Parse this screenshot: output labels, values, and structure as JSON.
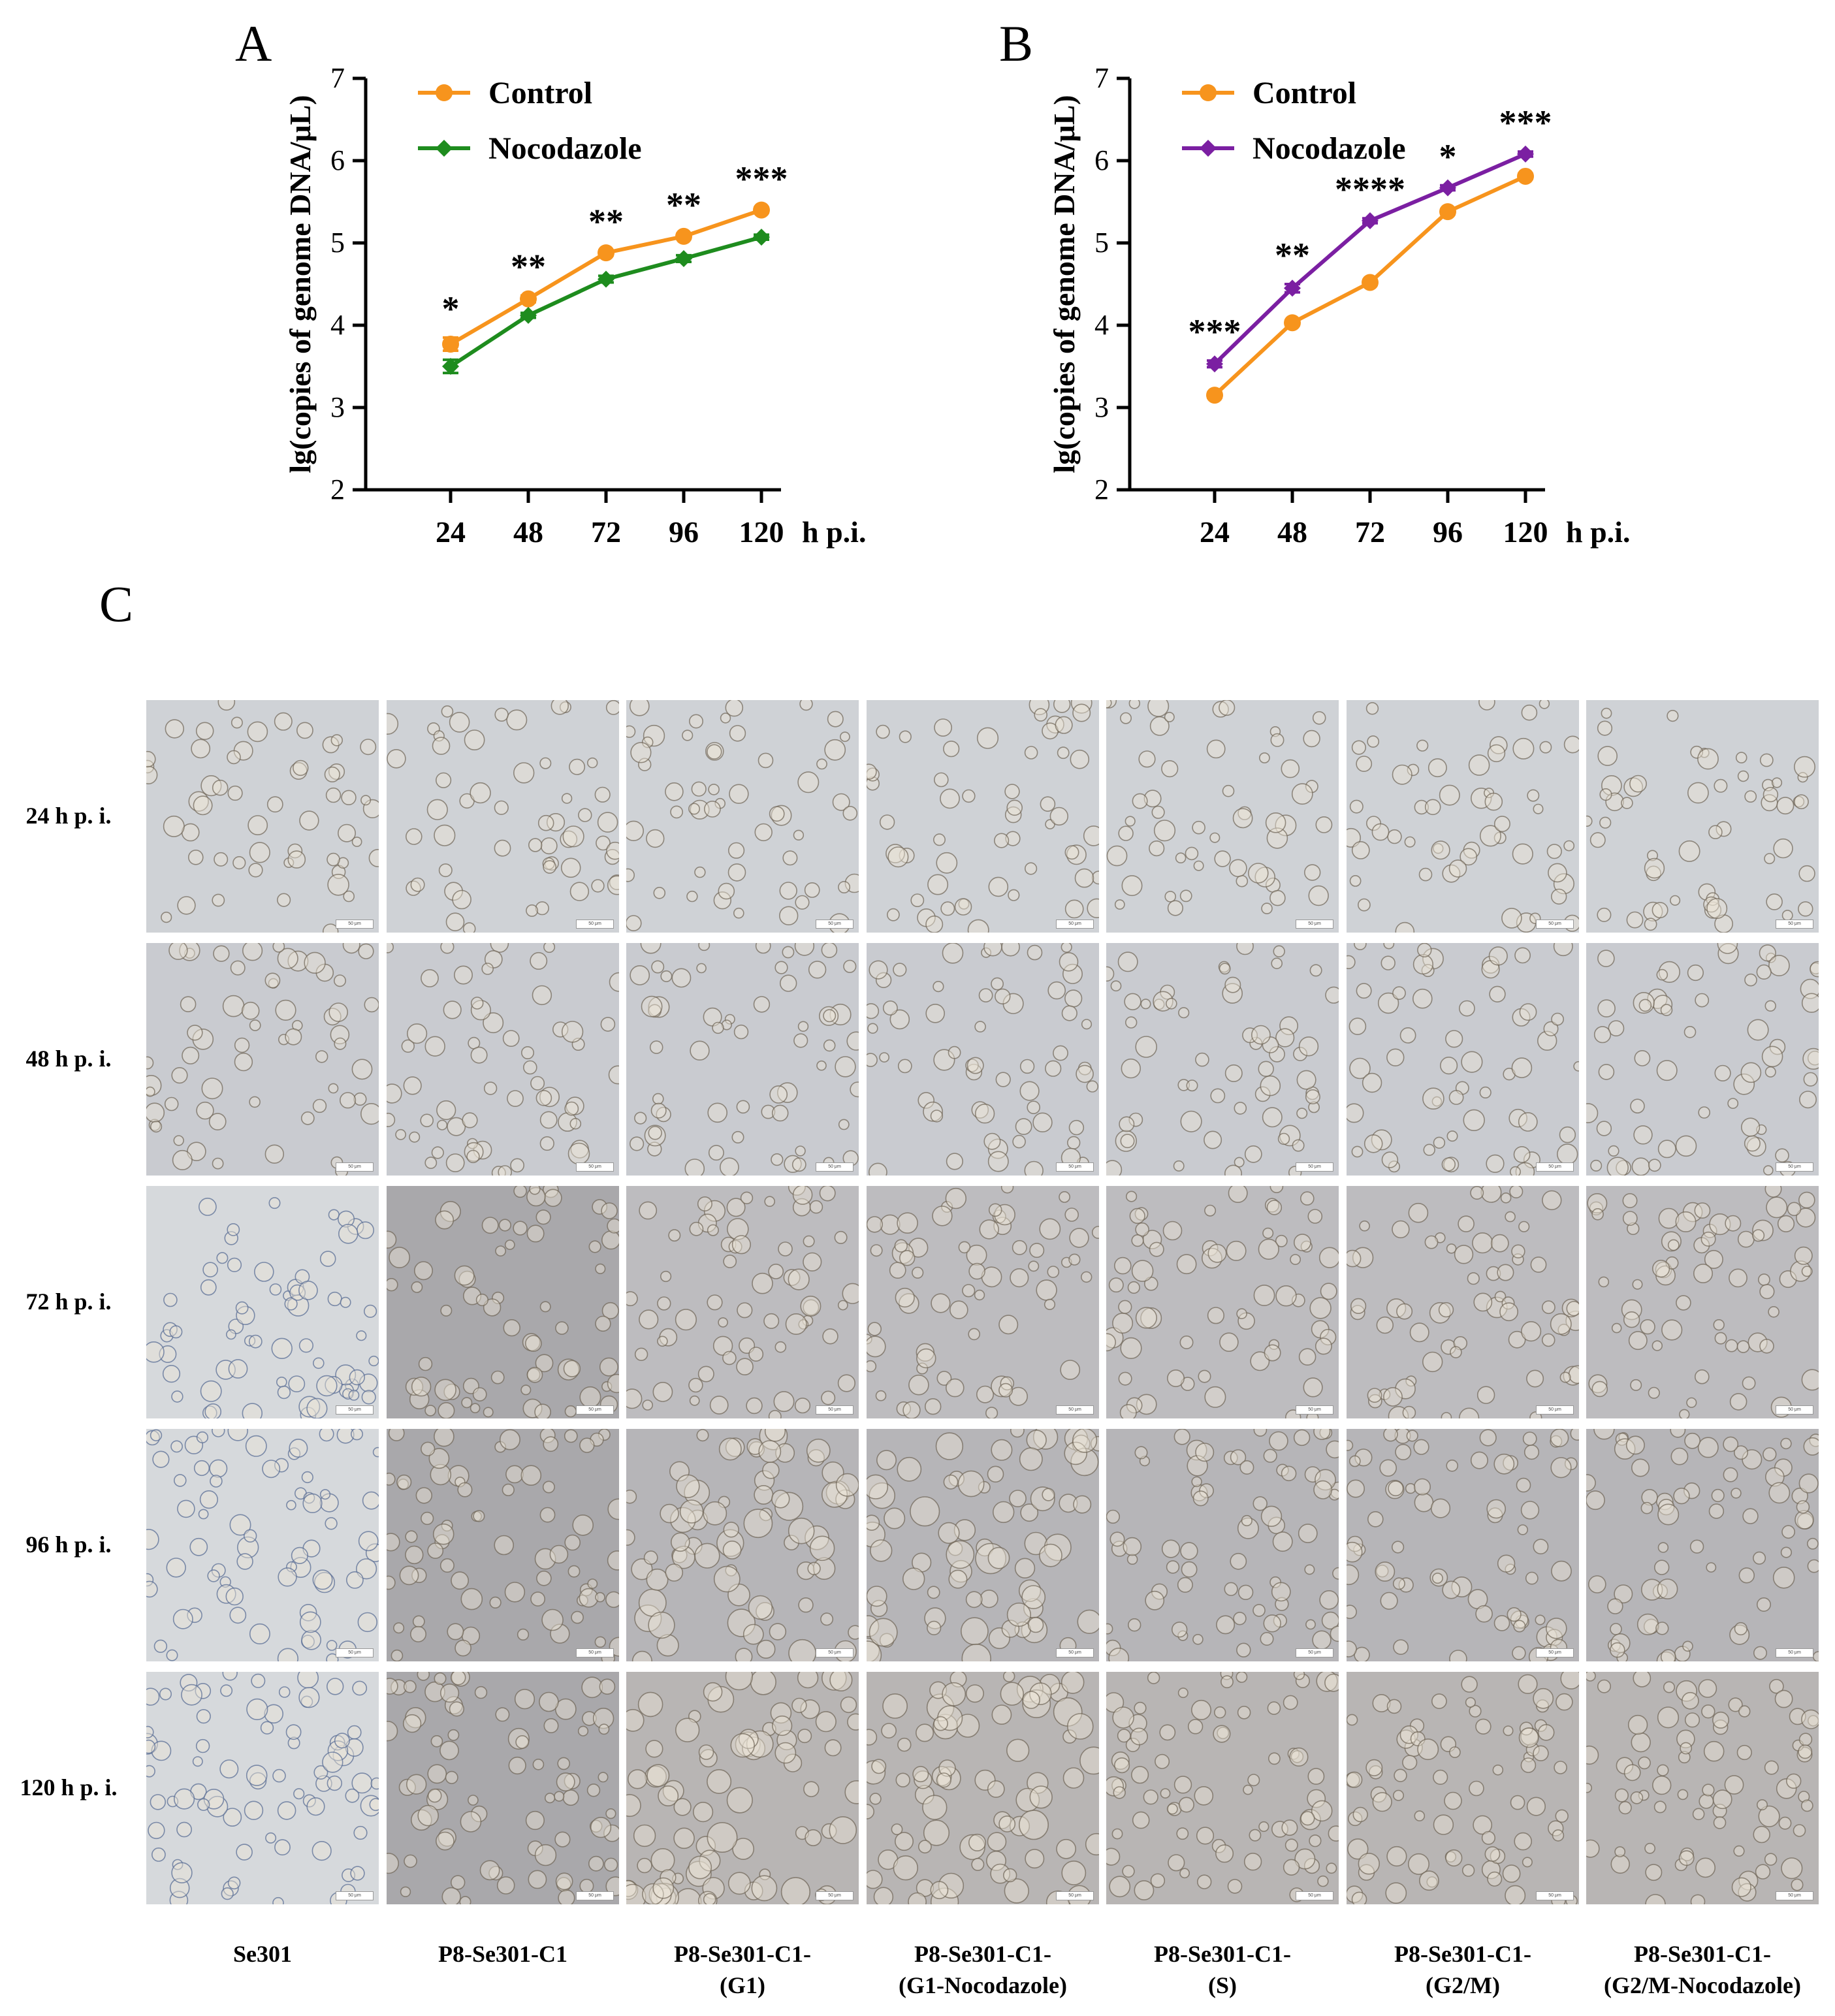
{
  "panels": {
    "a_letter": "A",
    "b_letter": "B",
    "c_letter": "C"
  },
  "chart_data": [
    {
      "type": "line",
      "ylabel": "lg(copies of genome DNA/μL)",
      "x_unit": "h p.i.",
      "x": [
        24,
        48,
        72,
        96,
        120
      ],
      "ylim": [
        2,
        7
      ],
      "yticks": [
        2,
        3,
        4,
        5,
        6,
        7
      ],
      "legend_position": "top-left",
      "series": [
        {
          "name": "Control",
          "color": "#F7941D",
          "marker": "circle",
          "values": [
            3.77,
            4.32,
            4.88,
            5.08,
            5.4
          ],
          "errors": [
            0.08,
            0.04,
            0.03,
            0.03,
            0.03
          ]
        },
        {
          "name": "Nocodazole",
          "color": "#1E8C1E",
          "marker": "diamond",
          "values": [
            3.5,
            4.12,
            4.56,
            4.81,
            5.07
          ],
          "errors": [
            0.08,
            0.03,
            0.04,
            0.04,
            0.03
          ]
        }
      ],
      "significance": [
        "*",
        "**",
        "**",
        "**",
        "***"
      ]
    },
    {
      "type": "line",
      "ylabel": "lg(copies of genome DNA/μL)",
      "x_unit": "h p.i.",
      "x": [
        24,
        48,
        72,
        96,
        120
      ],
      "ylim": [
        2,
        7
      ],
      "yticks": [
        2,
        3,
        4,
        5,
        6,
        7
      ],
      "legend_position": "top-left",
      "series": [
        {
          "name": "Control",
          "color": "#F7941D",
          "marker": "circle",
          "values": [
            3.15,
            4.03,
            4.52,
            5.38,
            5.81
          ],
          "errors": [
            0.03,
            0.03,
            0.03,
            0.03,
            0.03
          ]
        },
        {
          "name": "Nocodazole",
          "color": "#7B1FA2",
          "marker": "diamond",
          "values": [
            3.53,
            4.45,
            5.27,
            5.67,
            6.08
          ],
          "errors": [
            0.04,
            0.05,
            0.03,
            0.03,
            0.03
          ]
        }
      ],
      "significance": [
        "***",
        "**",
        "****",
        "*",
        "***"
      ]
    }
  ],
  "micrographs": {
    "row_labels": [
      "24 h p. i.",
      "48 h p. i.",
      "72 h p. i.",
      "96 h p. i.",
      "120 h p. i."
    ],
    "col_labels": [
      [
        "Se301",
        ""
      ],
      [
        "P8-Se301-C1",
        ""
      ],
      [
        "P8-Se301-C1-",
        "(G1)"
      ],
      [
        "P8-Se301-C1-",
        "(G1-Nocodazole)"
      ],
      [
        "P8-Se301-C1-",
        "(S)"
      ],
      [
        "P8-Se301-C1-",
        "(G2/M)"
      ],
      [
        "P8-Se301-C1-",
        "(G2/M-Nocodazole)"
      ]
    ],
    "scale_bar_text": "50 μm"
  }
}
